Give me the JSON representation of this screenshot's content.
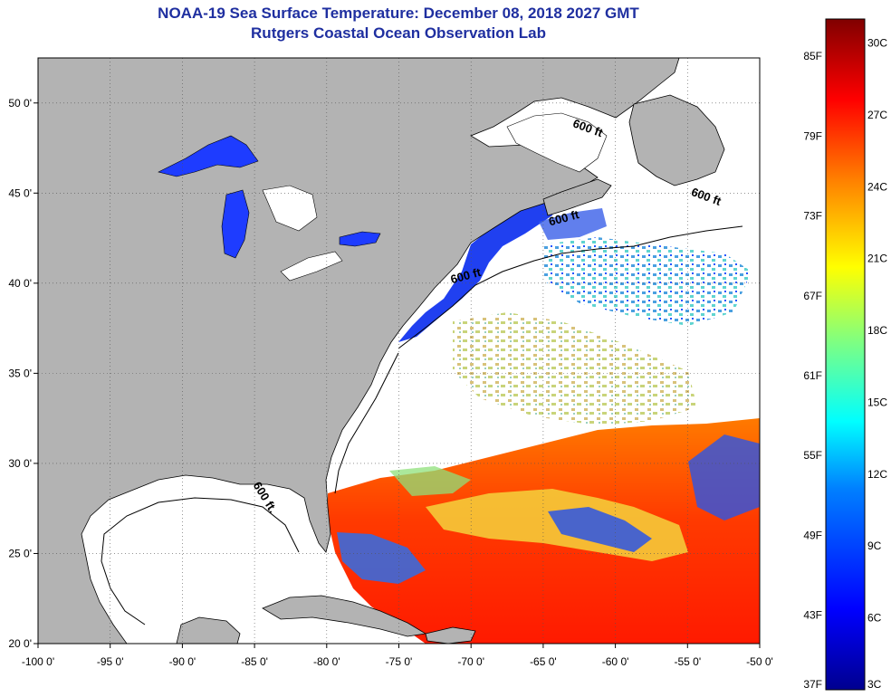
{
  "header": {
    "title": "NOAA-19 Sea Surface Temperature:  December 08, 2018 2027 GMT",
    "subtitle": "Rutgers Coastal Ocean Observation Lab"
  },
  "map": {
    "lon_range": [
      -100,
      -50
    ],
    "lat_range": [
      20,
      52.5
    ],
    "lon_ticks": [
      {
        "value": -100,
        "label": "-100 0'"
      },
      {
        "value": -95,
        "label": "-95 0'"
      },
      {
        "value": -90,
        "label": "-90 0'"
      },
      {
        "value": -85,
        "label": "-85 0'"
      },
      {
        "value": -80,
        "label": "-80 0'"
      },
      {
        "value": -75,
        "label": "-75 0'"
      },
      {
        "value": -70,
        "label": "-70 0'"
      },
      {
        "value": -65,
        "label": "-65 0'"
      },
      {
        "value": -60,
        "label": "-60 0'"
      },
      {
        "value": -55,
        "label": "-55 0'"
      },
      {
        "value": -50,
        "label": "-50 0'"
      }
    ],
    "lat_ticks": [
      {
        "value": 50,
        "label": "50 0'"
      },
      {
        "value": 45,
        "label": "45 0'"
      },
      {
        "value": 40,
        "label": "40 0'"
      },
      {
        "value": 35,
        "label": "35 0'"
      },
      {
        "value": 30,
        "label": "30 0'"
      },
      {
        "value": 25,
        "label": "25 0'"
      },
      {
        "value": 20,
        "label": "20 0'"
      }
    ],
    "depth_labels": [
      {
        "text": "600 ft",
        "lon": -62,
        "lat": 48.4,
        "rotate": 20
      },
      {
        "text": "600 ft",
        "lon": -53.8,
        "lat": 44.6,
        "rotate": 20
      },
      {
        "text": "600 ft",
        "lon": -63.5,
        "lat": 43.4,
        "rotate": -15
      },
      {
        "text": "600 ft",
        "lon": -70.3,
        "lat": 40.2,
        "rotate": -15
      },
      {
        "text": "600 ft.",
        "lon": -84.5,
        "lat": 28.0,
        "rotate": 58
      }
    ],
    "colors": {
      "land": "#b3b3b3",
      "ocean_nodata": "#ffffff",
      "lake_cold": "#1e3cff"
    }
  },
  "colorbar": {
    "celsius_range": [
      3,
      31
    ],
    "fahrenheit_labels": [
      "85F",
      "79F",
      "73F",
      "67F",
      "61F",
      "55F",
      "49F",
      "43F",
      "37F"
    ],
    "celsius_labels": [
      "30C",
      "27C",
      "24C",
      "21C",
      "18C",
      "15C",
      "12C",
      "9C",
      "6C",
      "3C"
    ],
    "colors": [
      "#00008f",
      "#0000ff",
      "#0080ff",
      "#00ffff",
      "#80ff80",
      "#ffff00",
      "#ff8000",
      "#ff0000",
      "#800000"
    ]
  }
}
